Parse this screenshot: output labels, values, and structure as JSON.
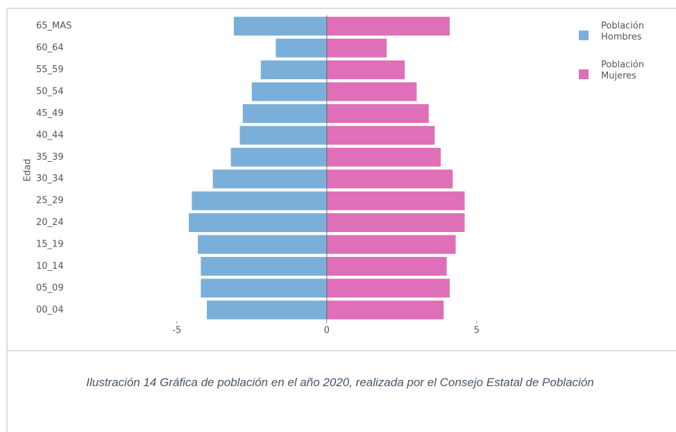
{
  "chart_data": {
    "type": "pyramid",
    "y_label": "Edad",
    "categories": [
      "65_MAS",
      "60_64",
      "55_59",
      "50_54",
      "45_49",
      "40_44",
      "35_39",
      "30_34",
      "25_29",
      "20_24",
      "15_19",
      "10_14",
      "05_09",
      "00_04"
    ],
    "series": [
      {
        "name": "Población Hombres",
        "color": "#7aafd9",
        "values": [
          -3.1,
          -1.7,
          -2.2,
          -2.5,
          -2.8,
          -2.9,
          -3.2,
          -3.8,
          -4.5,
          -4.6,
          -4.3,
          -4.2,
          -4.2,
          -4.0
        ]
      },
      {
        "name": "Población Mujeres",
        "color": "#de6fb8",
        "values": [
          4.1,
          2.0,
          2.6,
          3.0,
          3.4,
          3.6,
          3.8,
          4.2,
          4.6,
          4.6,
          4.3,
          4.0,
          4.1,
          3.9
        ]
      }
    ],
    "xlim": [
      -9,
      11
    ],
    "xticks": [
      -5,
      0,
      5
    ],
    "grid": false,
    "legend": "top-right"
  },
  "caption": "Ilustración 14 Gráfica de población en el año 2020, realizada por el Consejo Estatal de Población"
}
